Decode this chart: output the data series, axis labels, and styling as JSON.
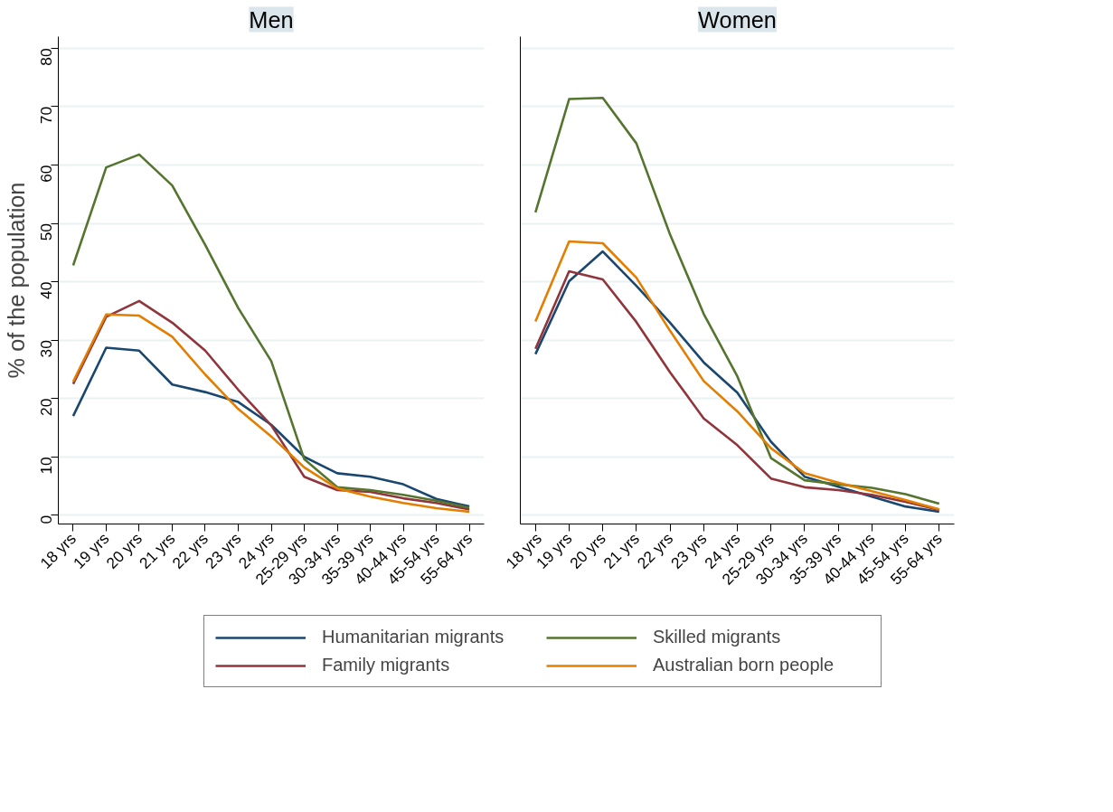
{
  "chart_data": [
    {
      "type": "line",
      "title": "Men",
      "ylabel": "% of the population",
      "categories": [
        "18 yrs",
        "19 yrs",
        "20 yrs",
        "21 yrs",
        "22 yrs",
        "23 yrs",
        "24 yrs",
        "25-29 yrs",
        "30-34 yrs",
        "35-39 yrs",
        "40-44 yrs",
        "45-54 yrs",
        "55-64 yrs"
      ],
      "ylim": [
        -1.5,
        82
      ],
      "yticks": [
        0,
        10,
        20,
        30,
        40,
        50,
        60,
        70,
        80
      ],
      "grid": "y",
      "legend": "bottom",
      "series": [
        {
          "name": "Humanitarian migrants",
          "color": "#1a476f",
          "values": [
            17,
            28.7,
            28.2,
            22.4,
            21.1,
            19.4,
            15.5,
            10,
            7.2,
            6.6,
            5.3,
            2.8,
            1.5
          ]
        },
        {
          "name": "Family migrants",
          "color": "#90353b",
          "values": [
            22.5,
            34,
            36.7,
            33,
            28.2,
            21.5,
            15.4,
            6.6,
            4.3,
            4,
            2.9,
            2.1,
            1
          ]
        },
        {
          "name": "Skilled migrants",
          "color": "#55752f",
          "values": [
            42.8,
            59.6,
            61.8,
            56.5,
            46.3,
            35.5,
            26.4,
            9.6,
            4.8,
            4.3,
            3.5,
            2.5,
            1.3
          ]
        },
        {
          "name": "Australian born people",
          "color": "#e37e00",
          "values": [
            22.9,
            34.4,
            34.2,
            30.6,
            24.1,
            18.2,
            13.5,
            8.2,
            4.6,
            3.2,
            2.1,
            1.2,
            0.6
          ]
        }
      ]
    },
    {
      "type": "line",
      "title": "Women",
      "categories": [
        "18 yrs",
        "19 yrs",
        "20 yrs",
        "21 yrs",
        "22 yrs",
        "23 yrs",
        "24 yrs",
        "25-29 yrs",
        "30-34 yrs",
        "35-39 yrs",
        "40-44 yrs",
        "45-54 yrs",
        "55-64 yrs"
      ],
      "ylim": [
        -1.5,
        82
      ],
      "yticks": [
        0,
        10,
        20,
        30,
        40,
        50,
        60,
        70,
        80
      ],
      "grid": "y",
      "tick_labels": "x",
      "series": [
        {
          "color": "#1a476f",
          "values": [
            27.6,
            40.1,
            45.2,
            39.3,
            33,
            26.2,
            21,
            12.6,
            6.6,
            4.9,
            3.2,
            1.5,
            0.6
          ]
        },
        {
          "color": "#90353b",
          "values": [
            28.5,
            41.8,
            40.4,
            33.1,
            24.5,
            16.6,
            12,
            6.3,
            4.8,
            4.3,
            3.5,
            2.3,
            0.9
          ]
        },
        {
          "color": "#55752f",
          "values": [
            51.9,
            71.3,
            71.5,
            63.7,
            48.1,
            34.5,
            23.8,
            9.8,
            6,
            5.3,
            4.7,
            3.6,
            2
          ]
        },
        {
          "color": "#e37e00",
          "values": [
            33.2,
            46.9,
            46.6,
            40.7,
            31.6,
            23,
            17.8,
            11.5,
            7.2,
            5.6,
            4.1,
            2.6,
            1
          ]
        }
      ]
    }
  ]
}
